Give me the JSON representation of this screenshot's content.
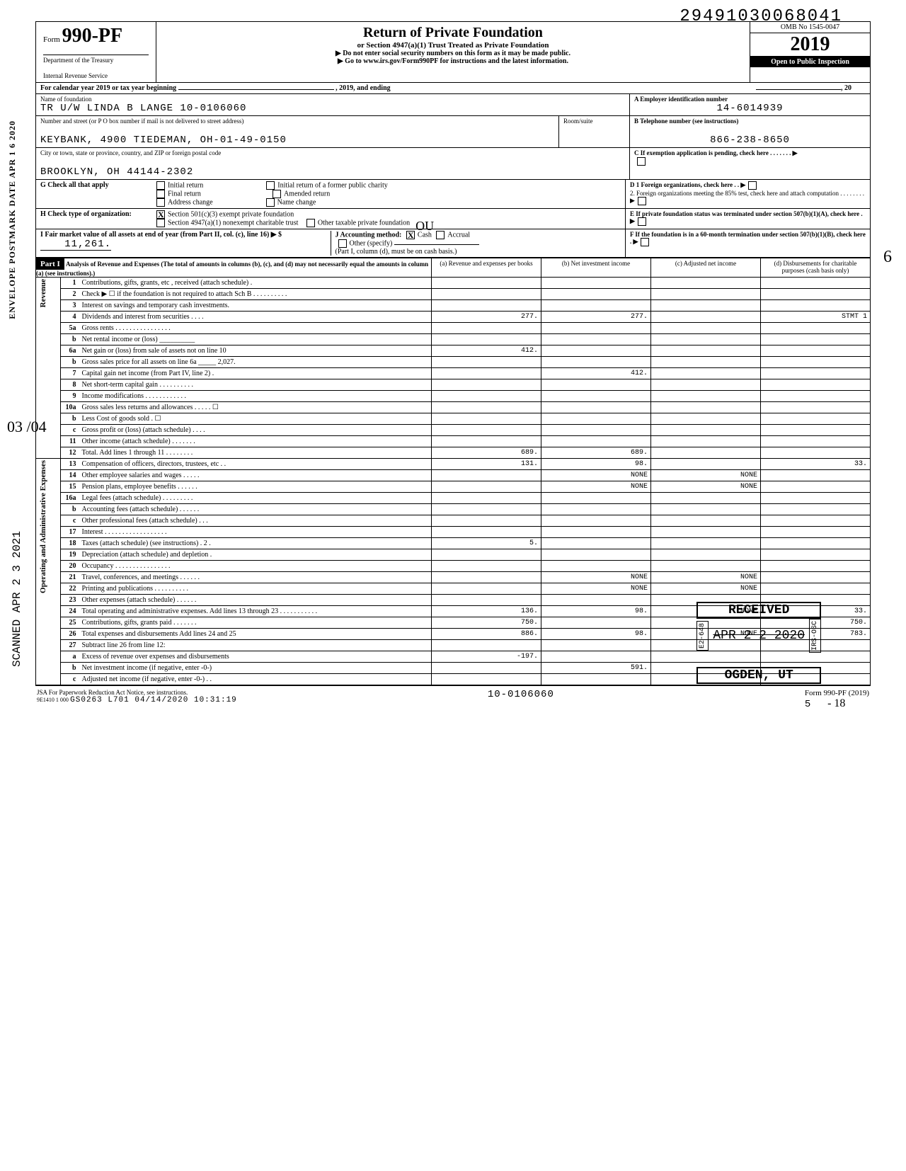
{
  "top_number": "29491030068041",
  "form_number": "990-PF",
  "dept1": "Department of the Treasury",
  "dept2": "Internal Revenue Service",
  "title": "Return of Private Foundation",
  "subtitle": "or Section 4947(a)(1) Trust Treated as Private Foundation",
  "note1": "▶ Do not enter social security numbers on this form as it may be made public.",
  "note2": "▶ Go to www.irs.gov/Form990PF for instructions and the latest information.",
  "omb": "OMB No 1545-0047",
  "year": "2019",
  "inspect": "Open to Public Inspection",
  "cal_year": "For calendar year 2019 or tax year beginning",
  "cal_mid": ", 2019, and ending",
  "cal_end": ", 20",
  "name_label": "Name of foundation",
  "name": "TR U/W LINDA B LANGE 10-0106060",
  "ein_label": "A  Employer identification number",
  "ein": "14-6014939",
  "street_label": "Number and street (or P O  box number if mail is not delivered to street address)",
  "street": "KEYBANK, 4900 TIEDEMAN, OH-01-49-0150",
  "room_label": "Room/suite",
  "phone_label": "B  Telephone number (see instructions)",
  "phone": "866-238-8650",
  "city_label": "City or town, state or province, country, and ZIP or foreign postal code",
  "city": "BROOKLYN, OH 44144-2302",
  "c_label": "C  If exemption application is pending, check here . . . . . . . ▶",
  "G_label": "G Check all that apply",
  "G_opts": [
    "Initial return",
    "Final return",
    "Address change",
    "Initial return of a former public charity",
    "Amended return",
    "Name change"
  ],
  "D_label": "D  1 Foreign organizations, check here . .  ▶",
  "D2_label": "2. Foreign organizations meeting the 85% test, check here and attach computation  . . . . . . . .  ▶",
  "H_label": "H Check type of organization:",
  "H_opt1": "Section 501(c)(3) exempt private foundation",
  "H_opt2": "Section 4947(a)(1) nonexempt charitable trust",
  "H_opt3": "Other taxable private foundation",
  "E_label": "E  If private foundation status was terminated under section 507(b)(1)(A), check here  .  ▶",
  "I_label": "I  Fair market value of all assets at end of year (from Part II, col. (c), line 16) ▶ $",
  "I_value": "11,261.",
  "J_label": "J Accounting method:",
  "J_cash": "Cash",
  "J_accrual": "Accrual",
  "J_other": "Other (specify)",
  "J_note": "(Part I, column (d), must be on cash basis.)",
  "F_label": "F  If the foundation is in a 60-month termination under section 507(b)(1)(B), check here  .  ▶",
  "part1": "Part I",
  "part1_title": "Analysis of Revenue and Expenses (The total of amounts in columns (b), (c), and (d) may not necessarily equal the amounts in column (a) (see instructions).)",
  "col_a": "(a) Revenue and expenses per books",
  "col_b": "(b) Net investment income",
  "col_c": "(c) Adjusted net income",
  "col_d": "(d) Disbursements for charitable purposes (cash basis only)",
  "rows": [
    {
      "n": "1",
      "d": "Contributions, gifts, grants, etc , received (attach schedule)  .",
      "a": "",
      "b": "",
      "c": "",
      "dd": ""
    },
    {
      "n": "2",
      "d": "Check ▶ ☐  if the foundation is not required to attach Sch B . . . . . . . . . .",
      "a": "",
      "b": "",
      "c": "",
      "dd": ""
    },
    {
      "n": "3",
      "d": "Interest on savings and temporary cash investments.",
      "a": "",
      "b": "",
      "c": "",
      "dd": ""
    },
    {
      "n": "4",
      "d": "Dividends and interest from securities  . . . .",
      "a": "277.",
      "b": "277.",
      "c": "",
      "dd": "STMT 1"
    },
    {
      "n": "5a",
      "d": "Gross rents . . . . . . . . . . . . . . . .",
      "a": "",
      "b": "",
      "c": "",
      "dd": ""
    },
    {
      "n": "b",
      "d": "Net rental income or (loss) __________",
      "a": "",
      "b": "",
      "c": "",
      "dd": ""
    },
    {
      "n": "6a",
      "d": "Net gain or (loss) from sale of assets not on line 10",
      "a": "412.",
      "b": "",
      "c": "",
      "dd": ""
    },
    {
      "n": "b",
      "d": "Gross sales price for all assets on line 6a _____ 2,027.",
      "a": "",
      "b": "",
      "c": "",
      "dd": ""
    },
    {
      "n": "7",
      "d": "Capital gain net income (from Part IV, line 2)  .",
      "a": "",
      "b": "412.",
      "c": "",
      "dd": ""
    },
    {
      "n": "8",
      "d": "Net short-term capital gain . . . . . . . . . .",
      "a": "",
      "b": "",
      "c": "",
      "dd": ""
    },
    {
      "n": "9",
      "d": "Income modifications  . . . . . . . . . . . .",
      "a": "",
      "b": "",
      "c": "",
      "dd": ""
    },
    {
      "n": "10a",
      "d": "Gross sales less returns and allowances  . . . . . ☐",
      "a": "",
      "b": "",
      "c": "",
      "dd": ""
    },
    {
      "n": "b",
      "d": "Less Cost of goods sold  . ☐",
      "a": "",
      "b": "",
      "c": "",
      "dd": ""
    },
    {
      "n": "c",
      "d": "Gross profit or (loss) (attach schedule)  . . . .",
      "a": "",
      "b": "",
      "c": "",
      "dd": ""
    },
    {
      "n": "11",
      "d": "Other income (attach schedule)  . . . . . . .",
      "a": "",
      "b": "",
      "c": "",
      "dd": ""
    },
    {
      "n": "12",
      "d": "Total. Add lines 1 through 11 . . . . . . . .",
      "a": "689.",
      "b": "689.",
      "c": "",
      "dd": ""
    },
    {
      "n": "13",
      "d": "Compensation of officers, directors, trustees, etc  . .",
      "a": "131.",
      "b": "98.",
      "c": "",
      "dd": "33."
    },
    {
      "n": "14",
      "d": "Other employee salaries and wages  . . . . .",
      "a": "",
      "b": "NONE",
      "c": "NONE",
      "dd": ""
    },
    {
      "n": "15",
      "d": "Pension plans, employee benefits  . . . . . .",
      "a": "",
      "b": "NONE",
      "c": "NONE",
      "dd": ""
    },
    {
      "n": "16a",
      "d": "Legal fees (attach schedule) . . . . . . . . .",
      "a": "",
      "b": "",
      "c": "",
      "dd": ""
    },
    {
      "n": "b",
      "d": "Accounting fees (attach schedule)  . . . . . .",
      "a": "",
      "b": "",
      "c": "",
      "dd": ""
    },
    {
      "n": "c",
      "d": "Other professional fees (attach schedule) . . .",
      "a": "",
      "b": "",
      "c": "",
      "dd": ""
    },
    {
      "n": "17",
      "d": "Interest . . . . . . . . . . . . . . . . . .",
      "a": "",
      "b": "",
      "c": "",
      "dd": ""
    },
    {
      "n": "18",
      "d": "Taxes (attach schedule) (see instructions) . 2 .",
      "a": "5.",
      "b": "",
      "c": "",
      "dd": ""
    },
    {
      "n": "19",
      "d": "Depreciation (attach schedule) and depletion .",
      "a": "",
      "b": "",
      "c": "",
      "dd": ""
    },
    {
      "n": "20",
      "d": "Occupancy . . . . . . . . . . . . . . . .",
      "a": "",
      "b": "",
      "c": "",
      "dd": ""
    },
    {
      "n": "21",
      "d": "Travel, conferences, and meetings . . . . . .",
      "a": "",
      "b": "NONE",
      "c": "NONE",
      "dd": ""
    },
    {
      "n": "22",
      "d": "Printing and publications  . . . . . . . . . .",
      "a": "",
      "b": "NONE",
      "c": "NONE",
      "dd": ""
    },
    {
      "n": "23",
      "d": "Other expenses (attach schedule)  . . . . . .",
      "a": "",
      "b": "",
      "c": "",
      "dd": ""
    },
    {
      "n": "24",
      "d": "Total operating and administrative expenses. Add lines 13 through 23 . . . . . . . . . . .",
      "a": "136.",
      "b": "98.",
      "c": "NONE",
      "dd": "33."
    },
    {
      "n": "25",
      "d": "Contributions, gifts, grants paid . . . . . . .",
      "a": "750.",
      "b": "",
      "c": "",
      "dd": "750."
    },
    {
      "n": "26",
      "d": "Total expenses and disbursements Add lines 24 and 25",
      "a": "886.",
      "b": "98.",
      "c": "NONE",
      "dd": "783."
    },
    {
      "n": "27",
      "d": "Subtract line 26 from line 12:",
      "a": "",
      "b": "",
      "c": "",
      "dd": ""
    },
    {
      "n": "a",
      "d": "Excess of revenue over expenses and disbursements",
      "a": "-197.",
      "b": "",
      "c": "",
      "dd": ""
    },
    {
      "n": "b",
      "d": "Net investment income (if negative, enter -0-)",
      "a": "",
      "b": "591.",
      "c": "",
      "dd": ""
    },
    {
      "n": "c",
      "d": "Adjusted net income (if negative, enter -0-) . .",
      "a": "",
      "b": "",
      "c": "",
      "dd": ""
    }
  ],
  "sec_revenue": "Revenue",
  "sec_opex": "Operating and Administrative Expenses",
  "footer_left": "JSA For Paperwork Reduction Act Notice, see instructions.",
  "footer_code": "9E1410 1 000",
  "footer_stamp": "GS0263 L701 04/14/2020 10:31:19",
  "footer_mid": "10-0106060",
  "footer_form": "Form 990-PF (2019)",
  "footer_page": "5",
  "hand_min18": "- 18",
  "stamp_received": "RECEIVED",
  "stamp_date": "APR 2 2 2020",
  "stamp_ogden": "OGDEN, UT",
  "stamp_e2": "E2-648",
  "stamp_irs": "IRS-OSC",
  "side_left1": "ENVELOPE\nPOSTMARK DATE  APR 1 6 2020",
  "side_left2": "SCANNED APR 2 3 2021",
  "hand_6": "6",
  "hand_03": "03\n /04",
  "ou_text": "OU"
}
